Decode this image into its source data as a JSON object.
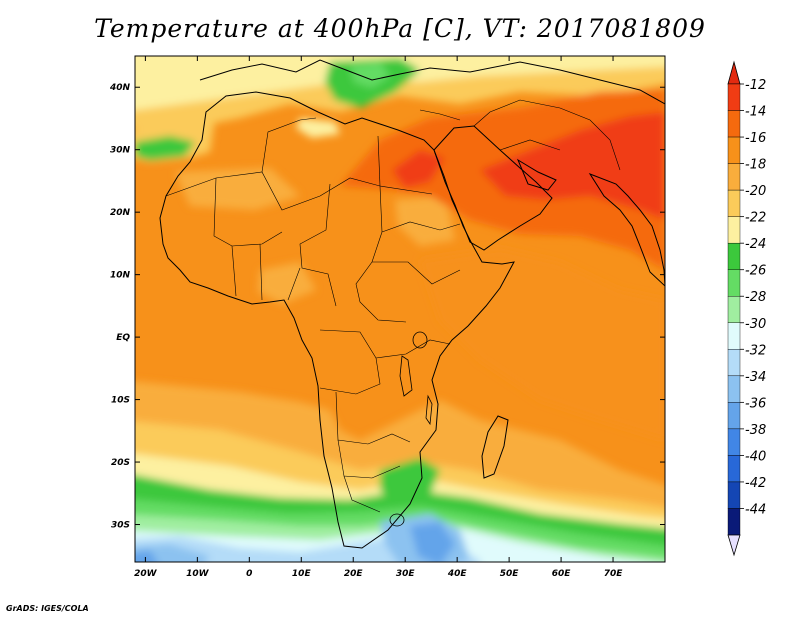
{
  "title": "Temperature at 400hPa [C], VT: 2017081809",
  "credit": "GrADS: IGES/COLA",
  "map": {
    "lon_range": [
      -22,
      80
    ],
    "lat_range": [
      -36,
      45
    ],
    "lat_ticks": [
      {
        "value": 40,
        "label": "40N"
      },
      {
        "value": 30,
        "label": "30N"
      },
      {
        "value": 20,
        "label": "20N"
      },
      {
        "value": 10,
        "label": "10N"
      },
      {
        "value": 0,
        "label": "EQ"
      },
      {
        "value": -10,
        "label": "10S"
      },
      {
        "value": -20,
        "label": "20S"
      },
      {
        "value": -30,
        "label": "30S"
      }
    ],
    "lon_ticks": [
      {
        "value": -20,
        "label": "20W"
      },
      {
        "value": -10,
        "label": "10W"
      },
      {
        "value": 0,
        "label": "0"
      },
      {
        "value": 10,
        "label": "10E"
      },
      {
        "value": 20,
        "label": "20E"
      },
      {
        "value": 30,
        "label": "30E"
      },
      {
        "value": 40,
        "label": "40E"
      },
      {
        "value": 50,
        "label": "50E"
      },
      {
        "value": 60,
        "label": "60E"
      },
      {
        "value": 70,
        "label": "70E"
      }
    ]
  },
  "colorbar": {
    "labels": [
      "-12",
      "-14",
      "-16",
      "-18",
      "-20",
      "-22",
      "-24",
      "-26",
      "-28",
      "-30",
      "-32",
      "-34",
      "-36",
      "-38",
      "-40",
      "-42",
      "-44"
    ],
    "colors": [
      "#f03c14",
      "#f56a0e",
      "#f7911a",
      "#f9ad3c",
      "#fbcb5a",
      "#fdf0a0",
      "#3cc83c",
      "#64dc64",
      "#a0eea0",
      "#e0fbfc",
      "#b4dcf8",
      "#8cc2f0",
      "#64a4ea",
      "#4186e6",
      "#2868d8",
      "#1446b4",
      "#0a1a78"
    ],
    "top_color": "#e32a10",
    "bottom_color": "#e6e0ff"
  },
  "field_regions": [
    {
      "name": "south-atlantic-cold-pool",
      "value": -34
    },
    {
      "name": "agulhas-cold-pool",
      "value": -34
    },
    {
      "name": "southern-ocean-band",
      "value": -26
    },
    {
      "name": "mediterranean-band",
      "value": -24
    },
    {
      "name": "tropical-belt",
      "value": -16
    },
    {
      "name": "arabia-india-warm-core",
      "value": -13
    }
  ]
}
